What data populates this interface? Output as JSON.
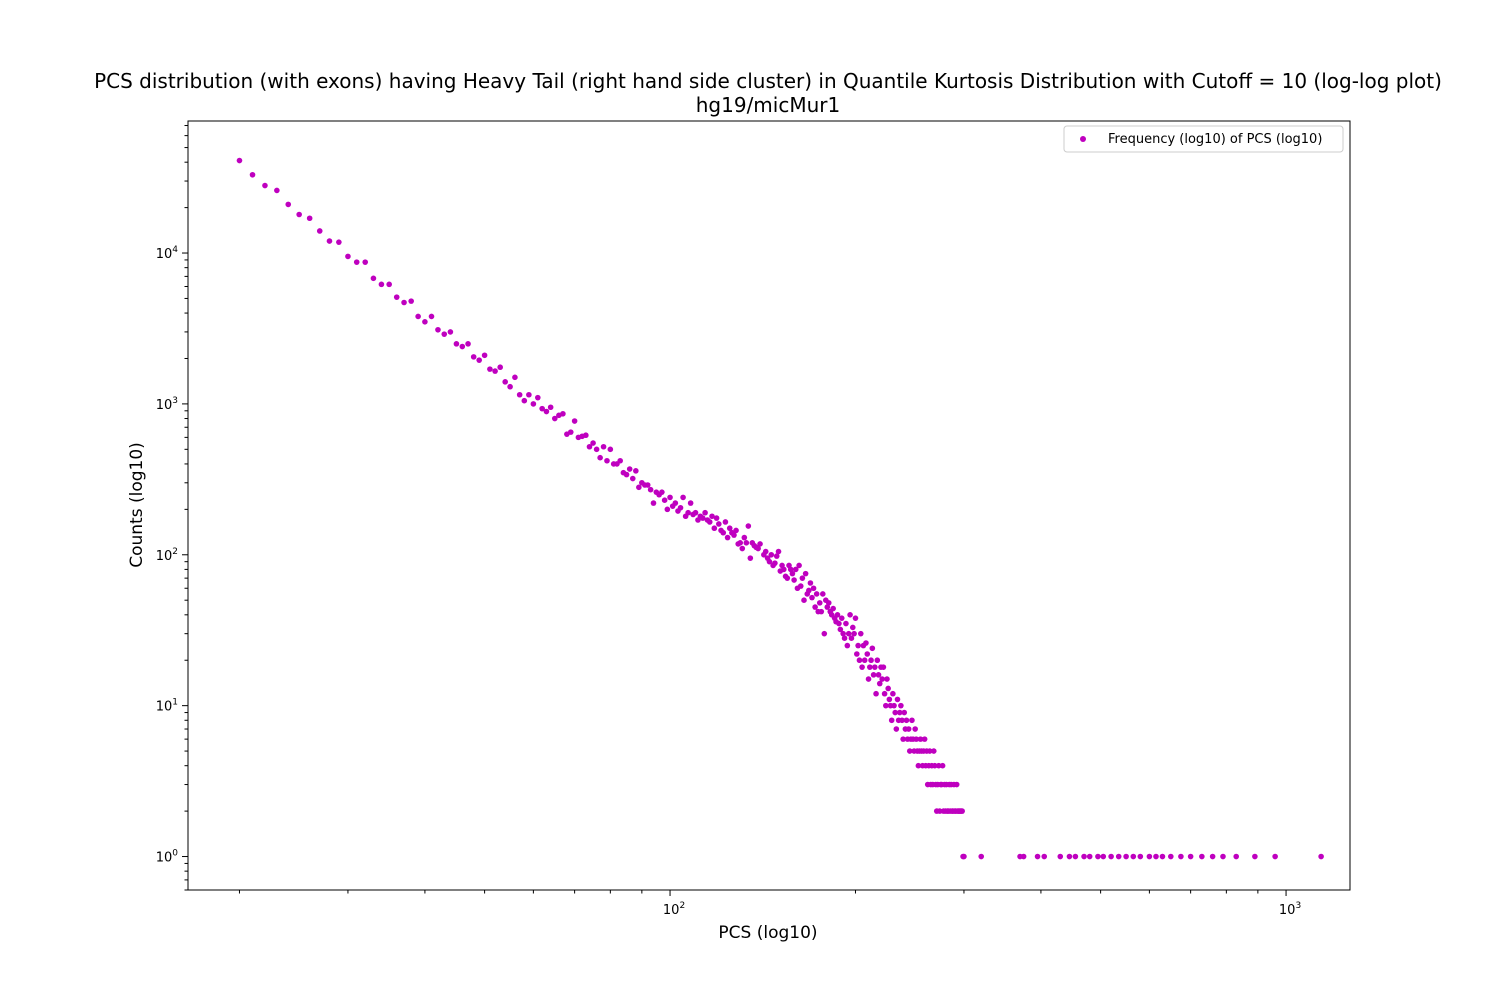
{
  "chart_data": {
    "type": "scatter",
    "title": "PCS distribution (with exons) having Heavy Tail (right hand side cluster) in Quantile Kurtosis Distribution with Cutoff = 10 (log-log plot)",
    "subtitle": "hg19/micMur1",
    "xlabel": "PCS (log10)",
    "ylabel": "Counts (log10)",
    "x_scale": "log",
    "y_scale": "log",
    "xlim": [
      16.5,
      1270
    ],
    "ylim": [
      0.6,
      75000
    ],
    "grid": false,
    "legend_position": "top-right",
    "x_ticks": [
      {
        "base": "10",
        "exp": "2",
        "value": 100
      },
      {
        "base": "10",
        "exp": "3",
        "value": 1000
      }
    ],
    "y_ticks": [
      {
        "base": "10",
        "exp": "0",
        "value": 1
      },
      {
        "base": "10",
        "exp": "1",
        "value": 10
      },
      {
        "base": "10",
        "exp": "2",
        "value": 100
      },
      {
        "base": "10",
        "exp": "3",
        "value": 1000
      },
      {
        "base": "10",
        "exp": "4",
        "value": 10000
      }
    ],
    "series": [
      {
        "name": "Frequency (log10) of PCS (log10)",
        "color": "#bf00bf",
        "points": [
          [
            20,
            41000
          ],
          [
            21,
            33000
          ],
          [
            22,
            28000
          ],
          [
            23,
            26000
          ],
          [
            24,
            21000
          ],
          [
            25,
            18000
          ],
          [
            26,
            17000
          ],
          [
            27,
            14000
          ],
          [
            28,
            12000
          ],
          [
            29,
            11800
          ],
          [
            30,
            9500
          ],
          [
            31,
            8700
          ],
          [
            32,
            8700
          ],
          [
            33,
            6800
          ],
          [
            34,
            6200
          ],
          [
            35,
            6200
          ],
          [
            36,
            5100
          ],
          [
            37,
            4700
          ],
          [
            38,
            4800
          ],
          [
            39,
            3800
          ],
          [
            40,
            3500
          ],
          [
            41,
            3800
          ],
          [
            42,
            3100
          ],
          [
            43,
            2900
          ],
          [
            44,
            3000
          ],
          [
            45,
            2500
          ],
          [
            46,
            2400
          ],
          [
            47,
            2500
          ],
          [
            48,
            2050
          ],
          [
            49,
            1950
          ],
          [
            50,
            2100
          ],
          [
            51,
            1700
          ],
          [
            52,
            1650
          ],
          [
            53,
            1750
          ],
          [
            54,
            1400
          ],
          [
            55,
            1300
          ],
          [
            56,
            1500
          ],
          [
            57,
            1150
          ],
          [
            58,
            1050
          ],
          [
            59,
            1150
          ],
          [
            60,
            1000
          ],
          [
            61,
            1100
          ],
          [
            62,
            930
          ],
          [
            63,
            890
          ],
          [
            64,
            950
          ],
          [
            65,
            800
          ],
          [
            66,
            840
          ],
          [
            67,
            860
          ],
          [
            68,
            630
          ],
          [
            69,
            650
          ],
          [
            70,
            770
          ],
          [
            71,
            600
          ],
          [
            72,
            610
          ],
          [
            73,
            620
          ],
          [
            74,
            520
          ],
          [
            75,
            550
          ],
          [
            76,
            500
          ],
          [
            77,
            440
          ],
          [
            78,
            520
          ],
          [
            79,
            420
          ],
          [
            80,
            500
          ],
          [
            81,
            400
          ],
          [
            82,
            400
          ],
          [
            83,
            420
          ],
          [
            84,
            350
          ],
          [
            85,
            340
          ],
          [
            86,
            370
          ],
          [
            87,
            320
          ],
          [
            88,
            360
          ],
          [
            89,
            280
          ],
          [
            90,
            300
          ],
          [
            91,
            290
          ],
          [
            92,
            290
          ],
          [
            93,
            270
          ],
          [
            94,
            220
          ],
          [
            95,
            260
          ],
          [
            96,
            250
          ],
          [
            97,
            260
          ],
          [
            98,
            230
          ],
          [
            99,
            200
          ],
          [
            100,
            240
          ],
          [
            101,
            210
          ],
          [
            102,
            220
          ],
          [
            103,
            195
          ],
          [
            104,
            205
          ],
          [
            105,
            240
          ],
          [
            106,
            180
          ],
          [
            107,
            190
          ],
          [
            108,
            220
          ],
          [
            109,
            185
          ],
          [
            110,
            190
          ],
          [
            111,
            170
          ],
          [
            112,
            180
          ],
          [
            113,
            175
          ],
          [
            114,
            190
          ],
          [
            115,
            170
          ],
          [
            116,
            165
          ],
          [
            117,
            180
          ],
          [
            118,
            150
          ],
          [
            119,
            175
          ],
          [
            120,
            160
          ],
          [
            121,
            145
          ],
          [
            122,
            140
          ],
          [
            123,
            165
          ],
          [
            124,
            130
          ],
          [
            125,
            150
          ],
          [
            126,
            140
          ],
          [
            127,
            135
          ],
          [
            128,
            145
          ],
          [
            129,
            118
          ],
          [
            130,
            120
          ],
          [
            131,
            110
          ],
          [
            132,
            130
          ],
          [
            133,
            120
          ],
          [
            134,
            155
          ],
          [
            135,
            95
          ],
          [
            136,
            120
          ],
          [
            137,
            115
          ],
          [
            138,
            112
          ],
          [
            139,
            110
          ],
          [
            140,
            118
          ],
          [
            142,
            100
          ],
          [
            143,
            105
          ],
          [
            144,
            95
          ],
          [
            145,
            90
          ],
          [
            146,
            100
          ],
          [
            147,
            85
          ],
          [
            148,
            88
          ],
          [
            149,
            98
          ],
          [
            150,
            105
          ],
          [
            151,
            78
          ],
          [
            152,
            85
          ],
          [
            153,
            80
          ],
          [
            154,
            72
          ],
          [
            155,
            70
          ],
          [
            156,
            85
          ],
          [
            157,
            80
          ],
          [
            158,
            75
          ],
          [
            159,
            68
          ],
          [
            160,
            80
          ],
          [
            161,
            60
          ],
          [
            162,
            85
          ],
          [
            163,
            62
          ],
          [
            164,
            70
          ],
          [
            165,
            50
          ],
          [
            166,
            75
          ],
          [
            167,
            55
          ],
          [
            168,
            58
          ],
          [
            169,
            65
          ],
          [
            170,
            52
          ],
          [
            171,
            60
          ],
          [
            172,
            45
          ],
          [
            173,
            55
          ],
          [
            174,
            42
          ],
          [
            175,
            48
          ],
          [
            176,
            42
          ],
          [
            177,
            55
          ],
          [
            178,
            30
          ],
          [
            179,
            50
          ],
          [
            180,
            45
          ],
          [
            181,
            48
          ],
          [
            182,
            42
          ],
          [
            183,
            40
          ],
          [
            184,
            44
          ],
          [
            185,
            38
          ],
          [
            186,
            36
          ],
          [
            187,
            40
          ],
          [
            188,
            35
          ],
          [
            189,
            32
          ],
          [
            190,
            38
          ],
          [
            191,
            30
          ],
          [
            192,
            28
          ],
          [
            193,
            35
          ],
          [
            194,
            25
          ],
          [
            195,
            30
          ],
          [
            196,
            40
          ],
          [
            197,
            28
          ],
          [
            198,
            33
          ],
          [
            199,
            30
          ],
          [
            200,
            38
          ],
          [
            201,
            22
          ],
          [
            202,
            25
          ],
          [
            203,
            20
          ],
          [
            204,
            30
          ],
          [
            205,
            18
          ],
          [
            206,
            25
          ],
          [
            207,
            20
          ],
          [
            208,
            26
          ],
          [
            209,
            22
          ],
          [
            210,
            15
          ],
          [
            211,
            18
          ],
          [
            212,
            20
          ],
          [
            213,
            24
          ],
          [
            214,
            16
          ],
          [
            215,
            18
          ],
          [
            216,
            12
          ],
          [
            217,
            20
          ],
          [
            218,
            16
          ],
          [
            219,
            14
          ],
          [
            220,
            18
          ],
          [
            221,
            15
          ],
          [
            222,
            18
          ],
          [
            223,
            12
          ],
          [
            224,
            10
          ],
          [
            225,
            15
          ],
          [
            226,
            13
          ],
          [
            227,
            11
          ],
          [
            228,
            10
          ],
          [
            229,
            8
          ],
          [
            230,
            12
          ],
          [
            231,
            10
          ],
          [
            232,
            9
          ],
          [
            233,
            7
          ],
          [
            234,
            11
          ],
          [
            235,
            8
          ],
          [
            236,
            9
          ],
          [
            237,
            10
          ],
          [
            238,
            8
          ],
          [
            239,
            6
          ],
          [
            240,
            9
          ],
          [
            241,
            7
          ],
          [
            242,
            8
          ],
          [
            243,
            6
          ],
          [
            244,
            7
          ],
          [
            245,
            5
          ],
          [
            246,
            6
          ],
          [
            247,
            8
          ],
          [
            248,
            6
          ],
          [
            249,
            5
          ],
          [
            250,
            7
          ],
          [
            251,
            6
          ],
          [
            252,
            5
          ],
          [
            253,
            4
          ],
          [
            254,
            5
          ],
          [
            255,
            6
          ],
          [
            256,
            5
          ],
          [
            257,
            4
          ],
          [
            258,
            5
          ],
          [
            259,
            6
          ],
          [
            260,
            4
          ],
          [
            261,
            5
          ],
          [
            262,
            3
          ],
          [
            263,
            4
          ],
          [
            264,
            5
          ],
          [
            265,
            3
          ],
          [
            266,
            4
          ],
          [
            267,
            3
          ],
          [
            268,
            5
          ],
          [
            269,
            4
          ],
          [
            270,
            3
          ],
          [
            271,
            2
          ],
          [
            272,
            3
          ],
          [
            273,
            4
          ],
          [
            274,
            2
          ],
          [
            275,
            3
          ],
          [
            276,
            3
          ],
          [
            277,
            4
          ],
          [
            278,
            2
          ],
          [
            279,
            3
          ],
          [
            280,
            2
          ],
          [
            281,
            3
          ],
          [
            282,
            2
          ],
          [
            283,
            2
          ],
          [
            284,
            3
          ],
          [
            285,
            2
          ],
          [
            286,
            3
          ],
          [
            287,
            2
          ],
          [
            288,
            2
          ],
          [
            289,
            3
          ],
          [
            290,
            2
          ],
          [
            291,
            2
          ],
          [
            292,
            3
          ],
          [
            293,
            2
          ],
          [
            294,
            2
          ],
          [
            295,
            2
          ],
          [
            296,
            2
          ],
          [
            297,
            2
          ],
          [
            298,
            2
          ],
          [
            299,
            1
          ],
          [
            300,
            1
          ],
          [
            320,
            1
          ],
          [
            370,
            1
          ],
          [
            375,
            1
          ],
          [
            395,
            1
          ],
          [
            405,
            1
          ],
          [
            430,
            1
          ],
          [
            445,
            1
          ],
          [
            455,
            1
          ],
          [
            470,
            1
          ],
          [
            480,
            1
          ],
          [
            495,
            1
          ],
          [
            505,
            1
          ],
          [
            520,
            1
          ],
          [
            535,
            1
          ],
          [
            550,
            1
          ],
          [
            565,
            1
          ],
          [
            580,
            1
          ],
          [
            600,
            1
          ],
          [
            615,
            1
          ],
          [
            630,
            1
          ],
          [
            650,
            1
          ],
          [
            675,
            1
          ],
          [
            700,
            1
          ],
          [
            730,
            1
          ],
          [
            760,
            1
          ],
          [
            790,
            1
          ],
          [
            830,
            1
          ],
          [
            890,
            1
          ],
          [
            960,
            1
          ],
          [
            1140,
            1
          ]
        ]
      }
    ]
  }
}
